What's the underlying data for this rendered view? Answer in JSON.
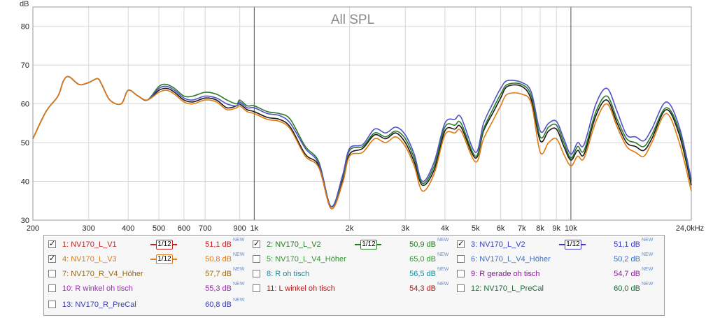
{
  "chart_data": {
    "type": "line",
    "title": "All SPL",
    "ylabel": "dB",
    "xlabel": "",
    "xscale": "log",
    "xlim": [
      200,
      24000
    ],
    "ylim": [
      30,
      85
    ],
    "x_ticks": [
      {
        "value": 200,
        "label": "200"
      },
      {
        "value": 300,
        "label": "300"
      },
      {
        "value": 400,
        "label": "400"
      },
      {
        "value": 500,
        "label": "500"
      },
      {
        "value": 600,
        "label": "600"
      },
      {
        "value": 700,
        "label": "700"
      },
      {
        "value": 900,
        "label": "900"
      },
      {
        "value": 1000,
        "label": "1k"
      },
      {
        "value": 2000,
        "label": "2k"
      },
      {
        "value": 3000,
        "label": "3k"
      },
      {
        "value": 4000,
        "label": "4k"
      },
      {
        "value": 5000,
        "label": "5k"
      },
      {
        "value": 6000,
        "label": "6k"
      },
      {
        "value": 7000,
        "label": "7k"
      },
      {
        "value": 8000,
        "label": "8k"
      },
      {
        "value": 9000,
        "label": "9k"
      },
      {
        "value": 10000,
        "label": "10k"
      },
      {
        "value": 24000,
        "label": "24,0kHz"
      }
    ],
    "y_ticks": [
      30,
      40,
      50,
      60,
      70,
      80
    ],
    "x": [
      200,
      220,
      240,
      250,
      260,
      280,
      300,
      320,
      330,
      350,
      380,
      400,
      430,
      460,
      500,
      530,
      560,
      600,
      640,
      700,
      760,
      820,
      880,
      900,
      950,
      1000,
      1100,
      1200,
      1300,
      1450,
      1600,
      1750,
      1900,
      2000,
      2200,
      2400,
      2600,
      2800,
      3000,
      3200,
      3400,
      3700,
      4000,
      4300,
      4500,
      5000,
      5300,
      5700,
      6000,
      6300,
      7000,
      7500,
      8000,
      8500,
      9000,
      9500,
      10000,
      10500,
      11000,
      12000,
      13000,
      14000,
      15000,
      16000,
      17000,
      18000,
      20000,
      22000,
      24000
    ],
    "series": [
      {
        "name": "1: NV170_L_V1",
        "color": "#1a1a1a",
        "values": [
          51,
          58,
          62,
          66,
          67,
          65,
          65.5,
          66.5,
          65,
          61,
          60,
          63.5,
          62,
          61,
          63.5,
          64,
          63,
          61,
          60.5,
          61.5,
          61,
          59,
          59.5,
          60,
          58.5,
          58,
          56.5,
          56,
          54,
          47,
          44,
          33,
          40,
          47,
          48.5,
          52,
          51,
          52.5,
          50,
          45,
          39,
          43,
          53,
          53.5,
          54,
          46,
          53,
          58,
          61.5,
          64.5,
          64.5,
          61,
          50.5,
          53,
          53.5,
          49,
          45.5,
          48,
          47,
          57,
          61,
          55,
          50,
          49,
          48,
          51,
          58.5,
          52,
          39
        ]
      },
      {
        "name": "2: NV170_L_V2",
        "color": "#2a7a2a",
        "values": [
          51,
          58,
          62,
          66,
          67,
          65,
          65.5,
          66.5,
          65,
          61,
          60,
          63.5,
          62,
          61,
          64.5,
          65,
          64,
          62,
          62,
          63,
          62.5,
          61,
          60,
          61,
          59.5,
          59.5,
          58,
          57.5,
          56,
          49,
          45,
          33.5,
          41,
          48,
          49,
          52.5,
          51.5,
          53,
          51,
          46,
          39.5,
          44,
          54,
          54.5,
          55,
          46.5,
          53.5,
          59,
          62.5,
          65,
          65,
          62,
          51.5,
          54,
          54.5,
          50,
          46,
          49,
          48,
          58,
          62,
          56,
          51,
          50,
          49,
          52,
          59,
          53,
          40
        ]
      },
      {
        "name": "3: NV170_L_V2",
        "color": "#5050c8",
        "values": [
          51,
          58,
          62,
          66,
          67,
          65,
          65.5,
          66.5,
          65,
          61,
          60,
          63.5,
          62,
          61,
          64,
          64.5,
          63.5,
          61.5,
          61,
          62,
          61.5,
          60,
          59.5,
          60.5,
          59,
          59,
          57.5,
          57,
          55,
          48.5,
          44.5,
          33.5,
          41.5,
          48.5,
          49.5,
          53.5,
          52.5,
          54,
          52,
          47,
          40,
          45,
          55,
          56,
          56.5,
          47.5,
          55,
          60.5,
          64,
          66,
          65.5,
          63,
          53,
          55,
          55.5,
          51,
          47,
          50,
          49.5,
          60,
          64,
          58,
          52,
          51.5,
          50.5,
          53.5,
          60.5,
          54,
          40.5
        ]
      },
      {
        "name": "4: NV170_L_V3",
        "color": "#e07a10",
        "values": [
          51,
          58,
          62,
          66,
          67,
          65,
          65.5,
          66.5,
          65,
          61,
          60,
          63.5,
          62,
          61,
          63,
          63.5,
          62.5,
          60.5,
          60,
          61,
          60.5,
          58.5,
          59,
          59.5,
          58,
          57.5,
          56,
          55.5,
          53.5,
          46.5,
          43.5,
          33,
          39.5,
          46.5,
          47.5,
          51,
          50,
          51.5,
          49,
          44,
          37.5,
          42,
          52,
          52.5,
          53,
          45,
          51,
          56,
          59.5,
          62.5,
          62.5,
          60,
          47.5,
          50,
          51,
          47,
          44,
          46.5,
          46,
          55.5,
          60,
          54,
          49,
          47.5,
          46.5,
          50,
          57.5,
          50,
          37.5
        ]
      }
    ]
  },
  "legend": [
    {
      "label": "1: NV170_L_V1",
      "checked": true,
      "check_glyph": "✓",
      "smoothing": "1/12",
      "value": "51,1 dB",
      "badge": "NEW",
      "color": "#c81e1e",
      "smooth_color": "#c81e1e"
    },
    {
      "label": "2: NV170_L_V2",
      "checked": true,
      "check_glyph": "✓",
      "smoothing": "1/12",
      "value": "50,9 dB",
      "badge": "NEW",
      "color": "#207a20",
      "smooth_color": "#207a20"
    },
    {
      "label": "3: NV170_L_V2",
      "checked": true,
      "check_glyph": "✓",
      "smoothing": "1/12",
      "value": "51,1 dB",
      "badge": "NEW",
      "color": "#3a3ac8",
      "smooth_color": "#3a3ac8"
    },
    {
      "label": "4: NV170_L_V3",
      "checked": true,
      "check_glyph": "✓",
      "smoothing": "1/12",
      "value": "50,8 dB",
      "badge": "NEW",
      "color": "#e07a10",
      "smooth_color": "#e07a10"
    },
    {
      "label": "5: NV170_L_V4_Höher",
      "checked": false,
      "check_glyph": "",
      "smoothing": "",
      "value": "65,0 dB",
      "badge": "NEW",
      "color": "#2a9a2a",
      "smooth_color": ""
    },
    {
      "label": "6: NV170_L_V4_Höher",
      "checked": false,
      "check_glyph": "",
      "smoothing": "",
      "value": "50,2 dB",
      "badge": "NEW",
      "color": "#3a70c8",
      "smooth_color": ""
    },
    {
      "label": "7: NV170_R_V4_Höher",
      "checked": false,
      "check_glyph": "",
      "smoothing": "",
      "value": "57,7 dB",
      "badge": "NEW",
      "color": "#9a6a10",
      "smooth_color": ""
    },
    {
      "label": "8: R oh tisch",
      "checked": false,
      "check_glyph": "",
      "smoothing": "",
      "value": "56,5 dB",
      "badge": "NEW",
      "color": "#1a8a9a",
      "smooth_color": ""
    },
    {
      "label": "9: R gerade  oh tisch",
      "checked": false,
      "check_glyph": "",
      "smoothing": "",
      "value": "54,7 dB",
      "badge": "NEW",
      "color": "#8a1a9a",
      "smooth_color": ""
    },
    {
      "label": "10: R winkel oh tisch",
      "checked": false,
      "check_glyph": "",
      "smoothing": "",
      "value": "55,3 dB",
      "badge": "NEW",
      "color": "#9a2ab0",
      "smooth_color": ""
    },
    {
      "label": "11: L winkel oh tisch",
      "checked": false,
      "check_glyph": "",
      "smoothing": "",
      "value": "54,3 dB",
      "badge": "NEW",
      "color": "#b01a1a",
      "smooth_color": ""
    },
    {
      "label": "12: NV170_L_PreCal",
      "checked": false,
      "check_glyph": "",
      "smoothing": "",
      "value": "60,0 dB",
      "badge": "NEW",
      "color": "#1a6a3a",
      "smooth_color": ""
    },
    {
      "label": "13: NV170_R_PreCal",
      "checked": false,
      "check_glyph": "",
      "smoothing": "",
      "value": "60,8 dB",
      "badge": "NEW",
      "color": "#3a3ab0",
      "smooth_color": ""
    }
  ]
}
